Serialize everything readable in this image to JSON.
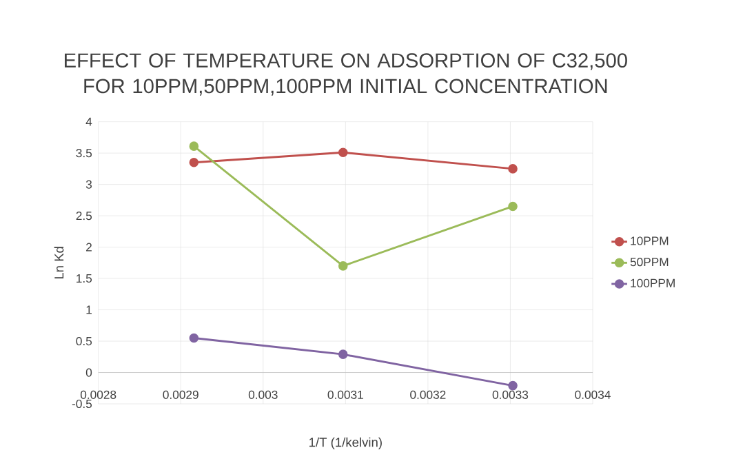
{
  "chart_data": {
    "type": "line",
    "title": "EFFECT OF TEMPERATURE ON ADSORPTION OF C32,500 FOR 10PPM,50PPM,100PPM INITIAL CONCENTRATION",
    "xlabel": "1/T (1/kelvin)",
    "ylabel": "Ln Kd",
    "x": [
      0.002916,
      0.003097,
      0.003303
    ],
    "series": [
      {
        "name": "10PPM",
        "color": "#c0504d",
        "values": [
          3.35,
          3.51,
          3.25
        ]
      },
      {
        "name": "50PPM",
        "color": "#9bbb59",
        "values": [
          3.61,
          1.7,
          2.65
        ]
      },
      {
        "name": "100PPM",
        "color": "#8064a2",
        "values": [
          0.55,
          0.29,
          -0.21
        ]
      }
    ],
    "xlim": [
      0.0028,
      0.0034
    ],
    "xticks": [
      0.0028,
      0.0029,
      0.003,
      0.0031,
      0.0032,
      0.0033,
      0.0034
    ],
    "ylim": [
      -0.5,
      4
    ],
    "yticks": [
      -0.5,
      0,
      0.5,
      1,
      1.5,
      2,
      2.5,
      3,
      3.5,
      4
    ],
    "grid": true,
    "legend": "right",
    "marker": "circle",
    "line_style": "solid"
  }
}
